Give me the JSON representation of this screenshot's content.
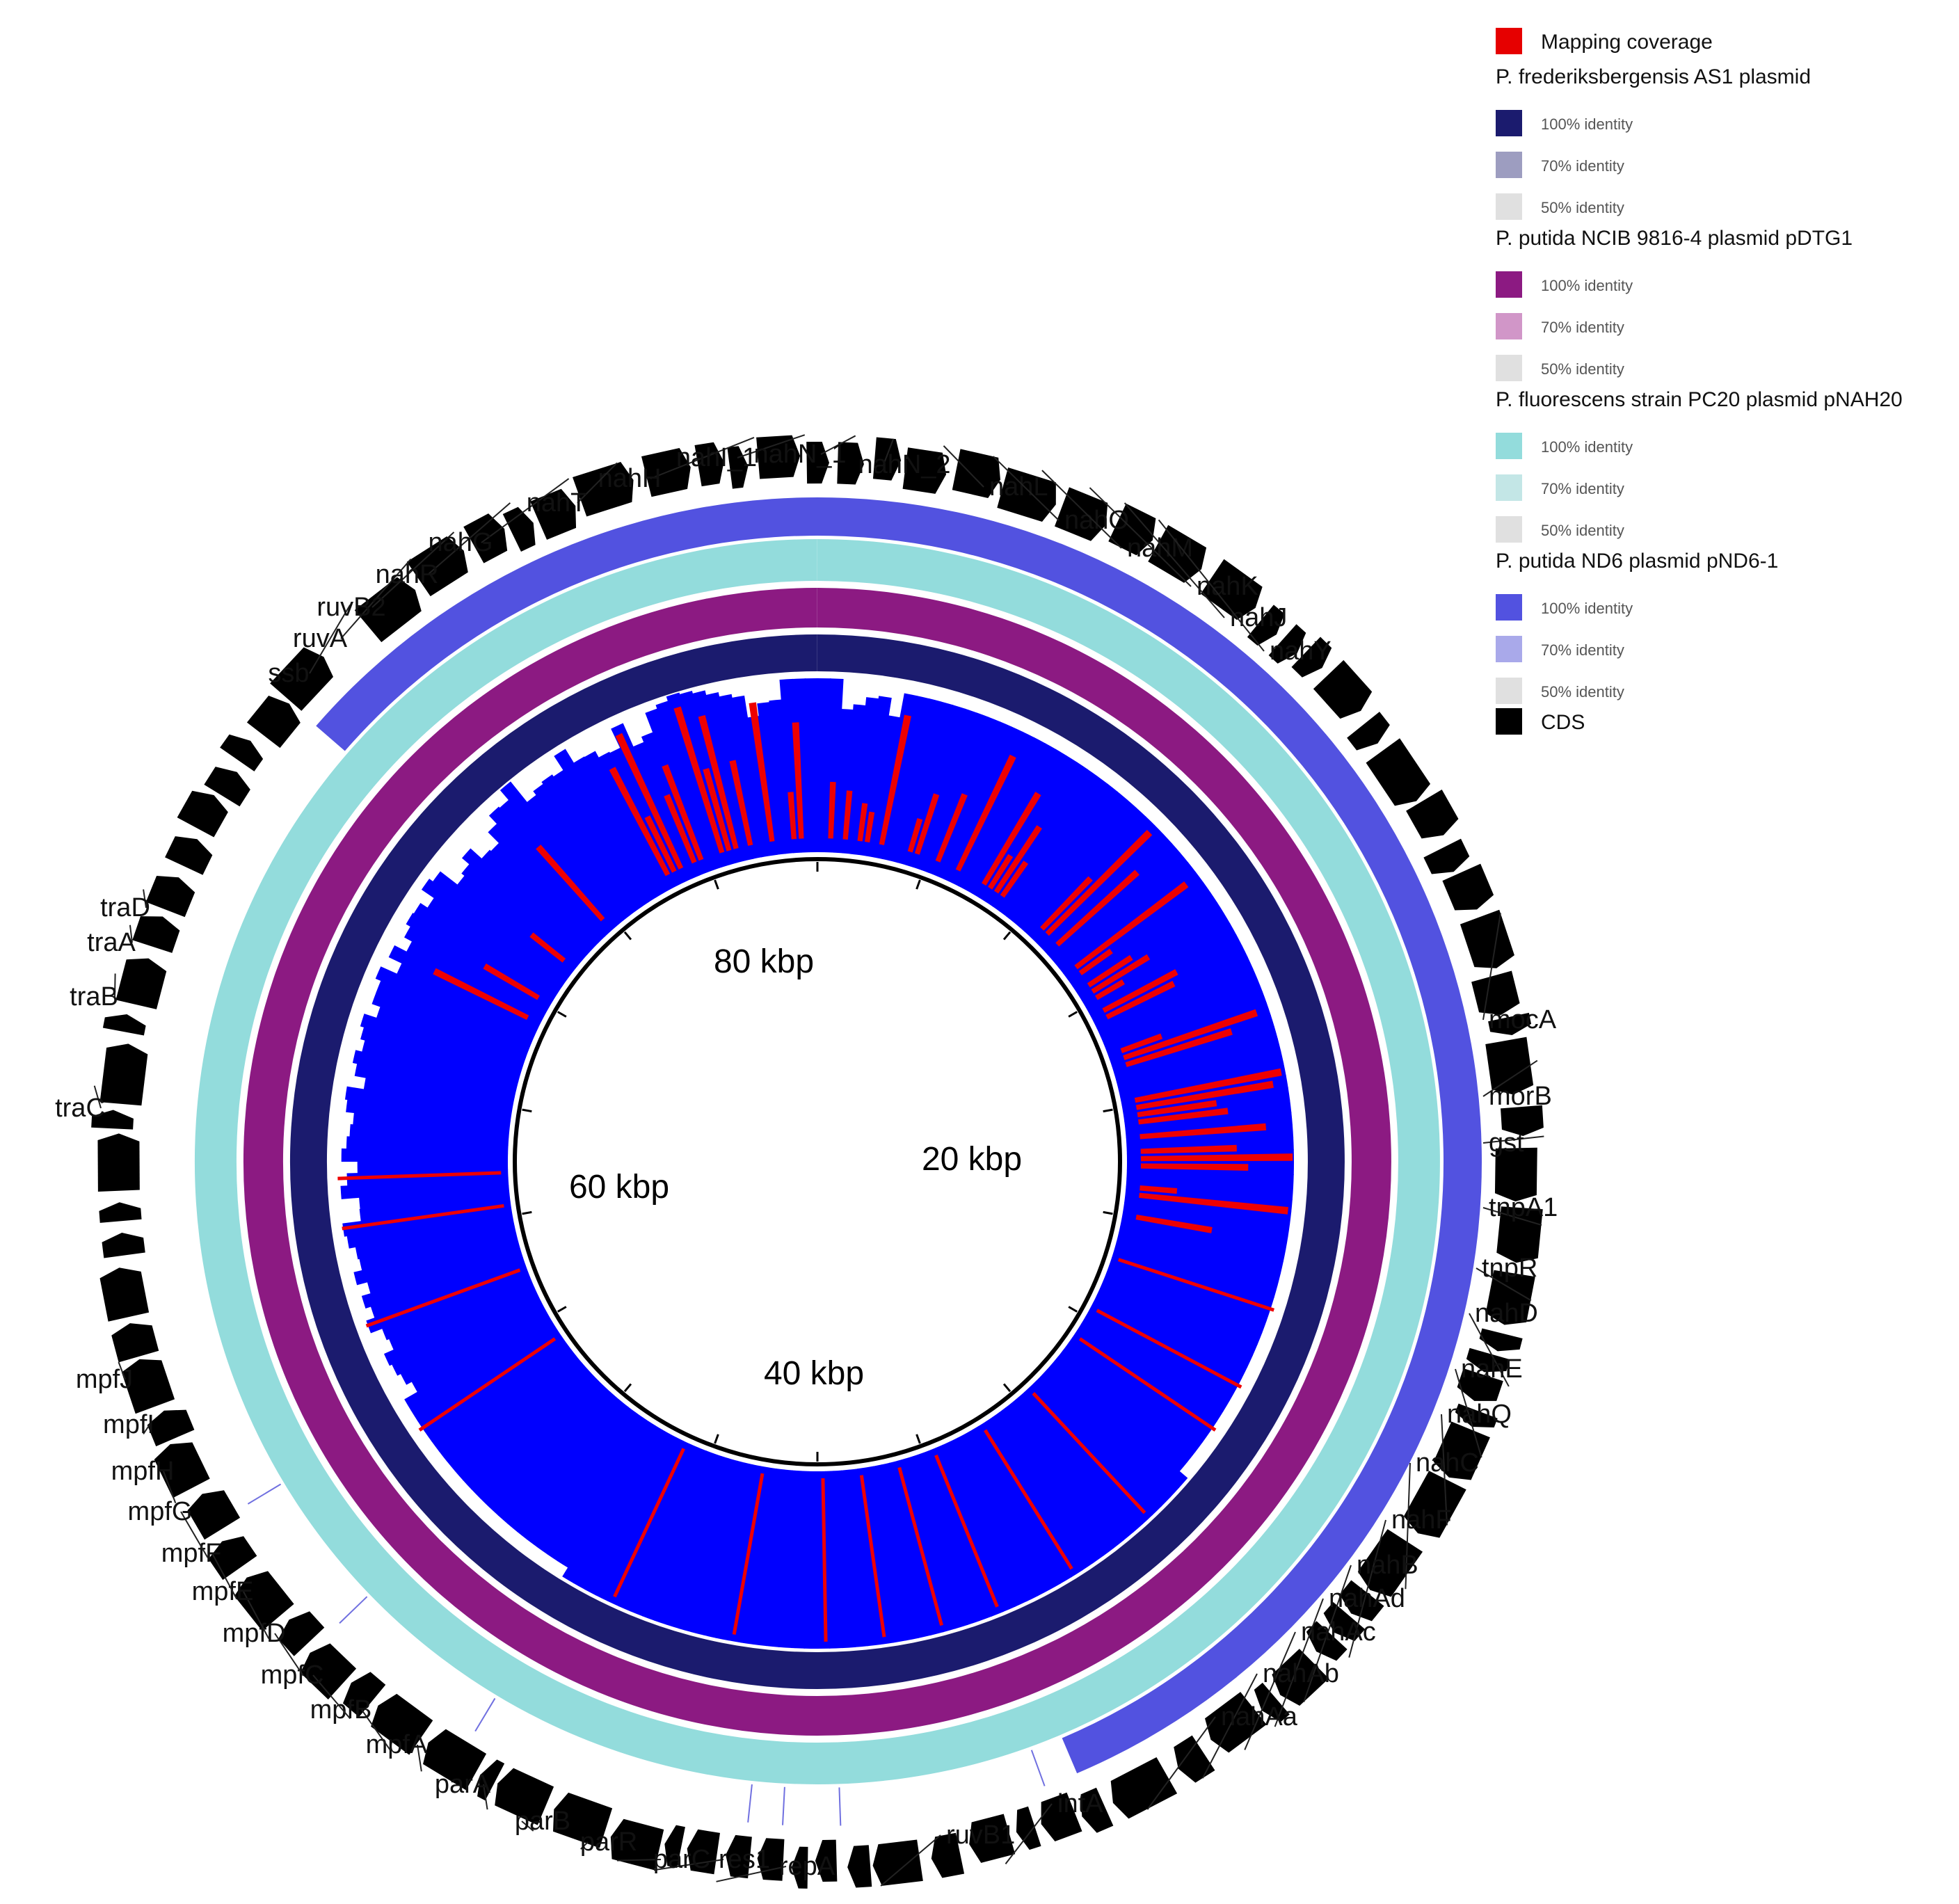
{
  "figure": {
    "center_labels": [
      "80 kbp",
      "20 kbp",
      "60 kbp",
      "40 kbp"
    ]
  },
  "legend": {
    "title": "Mapping coverage",
    "sections": [
      {
        "name": "P. frederiksbergensis AS1 plasmid",
        "entries": [
          {
            "label": "100% identity",
            "color": "#1b1b6e"
          },
          {
            "label": "70% identity",
            "color": "#9d9dc0"
          },
          {
            "label": "50% identity",
            "color": "#e0e0e0"
          }
        ]
      },
      {
        "name": "P. putida NCIB 9816-4 plasmid pDTG1",
        "entries": [
          {
            "label": "100% identity",
            "color": "#8c1a82"
          },
          {
            "label": "70% identity",
            "color": "#d196c8"
          },
          {
            "label": "50% identity",
            "color": "#e0e0e0"
          }
        ]
      },
      {
        "name": "P. fluorescens strain PC20 plasmid pNAH20",
        "entries": [
          {
            "label": "100% identity",
            "color": "#93dcdc"
          },
          {
            "label": "70% identity",
            "color": "#c3e6e6"
          },
          {
            "label": "50% identity",
            "color": "#e0e0e0"
          }
        ]
      },
      {
        "name": "P. putida ND6 plasmid pND6-1",
        "entries": [
          {
            "label": "100% identity",
            "color": "#5252e0"
          },
          {
            "label": "70% identity",
            "color": "#a9a9ea"
          },
          {
            "label": "50% identity",
            "color": "#e0e0e0"
          }
        ]
      }
    ],
    "cds_label": "CDS",
    "coverage_color": "#e60000",
    "cds_color": "#000000"
  },
  "colors": {
    "coverage_red": "#ee0000",
    "coverage_blue": "#0000ff",
    "ring_navy": "#1b1b6e",
    "ring_purple": "#8c1a82",
    "ring_cyan": "#93dcdc",
    "ring_blue": "#5252e0",
    "cds": "#000000"
  },
  "genes": [
    "nahH",
    "nahI_1",
    "nahN_1",
    "nahN_2",
    "nahL",
    "nahO",
    "nahM",
    "nahK",
    "nahJ",
    "nahY",
    "mocA",
    "morB",
    "gst",
    "tnpA1",
    "tnpR",
    "nahD",
    "nahE",
    "nahQ",
    "nahC",
    "nahF",
    "nahB",
    "nahAd",
    "nahAc",
    "nahAb",
    "nahAa",
    "intA",
    "ruvB1",
    "repA",
    "res1",
    "parC",
    "parR",
    "parB",
    "parA",
    "mpfA",
    "mpfB",
    "mpfC",
    "mpfD",
    "mpfE",
    "mpfF",
    "mpfG",
    "mpfH",
    "mpfI",
    "mpfJ",
    "traC",
    "traB",
    "traA",
    "traD",
    "ssb",
    "ruvA",
    "ruvB2",
    "nahR",
    "nahG",
    "nahT"
  ]
}
